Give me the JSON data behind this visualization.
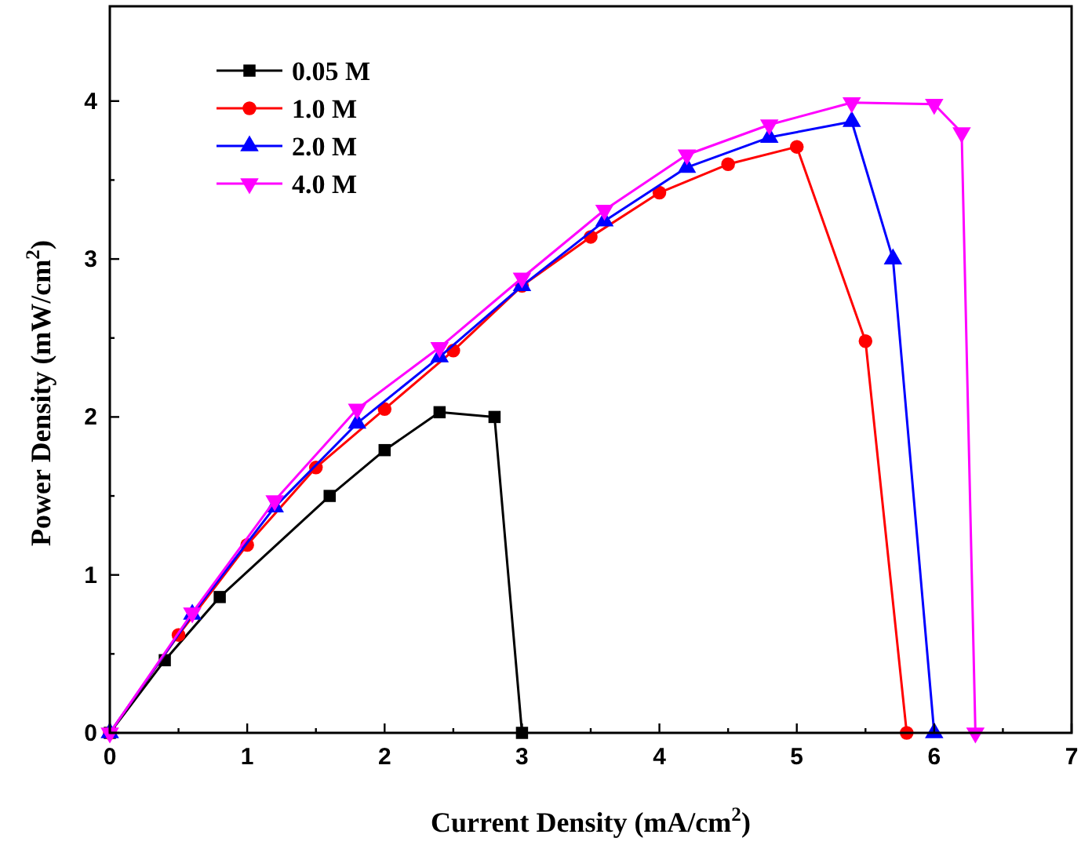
{
  "chart_data": {
    "type": "line",
    "xlabel": "Current Density (mA/cm$^{2}$)",
    "ylabel": "Power Density (mW/cm$^{2}$)",
    "xlim": [
      0,
      7
    ],
    "ylim": [
      0,
      4.6
    ],
    "xticks": [
      0,
      {
        "value": 0.5,
        "label": null
      },
      1,
      {
        "value": 1.5,
        "label": null
      },
      2,
      {
        "value": 2.5,
        "label": null
      },
      3,
      {
        "value": 3.5,
        "label": null
      },
      4,
      {
        "value": 4.5,
        "label": null
      },
      5,
      {
        "value": 5.5,
        "label": null
      },
      6,
      {
        "value": 6.5,
        "label": null
      },
      7
    ],
    "yticks": [
      0,
      {
        "value": 0.5,
        "label": null
      },
      1,
      {
        "value": 1.5,
        "label": null
      },
      2,
      {
        "value": 2.5,
        "label": null
      },
      3,
      {
        "value": 3.5,
        "label": null
      },
      4
    ],
    "legend": "top left",
    "grid": false,
    "line_style": "solid",
    "series": [
      {
        "name": "0.05 M",
        "color": "#000000",
        "marker": "square",
        "x": [
          0,
          0.4,
          0.8,
          1.6,
          2.0,
          2.4,
          2.8,
          3.0
        ],
        "values": [
          0,
          0.46,
          0.86,
          1.5,
          1.79,
          2.03,
          2.0,
          0
        ]
      },
      {
        "name": "1.0 M",
        "color": "#ff0000",
        "marker": "circle",
        "x": [
          0,
          0.5,
          1.0,
          1.5,
          2.0,
          2.5,
          3.0,
          3.5,
          4.0,
          4.5,
          5.0,
          5.5,
          5.8
        ],
        "values": [
          0,
          0.62,
          1.19,
          1.68,
          2.05,
          2.42,
          2.83,
          3.14,
          3.42,
          3.6,
          3.71,
          2.48,
          0
        ]
      },
      {
        "name": "2.0 M",
        "color": "#0000ff",
        "marker": "triangle",
        "x": [
          0,
          0.6,
          1.2,
          1.8,
          2.4,
          3.0,
          3.6,
          4.2,
          4.8,
          5.4,
          5.7,
          6.0
        ],
        "values": [
          0,
          0.75,
          1.43,
          1.96,
          2.38,
          2.83,
          3.24,
          3.58,
          3.77,
          3.87,
          3.0,
          0
        ]
      },
      {
        "name": "4.0 M",
        "color": "#ff00ff",
        "marker": "triangle-down",
        "x": [
          0,
          0.6,
          1.2,
          1.8,
          2.4,
          3.0,
          3.6,
          4.2,
          4.8,
          5.4,
          6.0,
          6.2,
          6.3
        ],
        "values": [
          0,
          0.76,
          1.47,
          2.05,
          2.44,
          2.88,
          3.31,
          3.66,
          3.85,
          3.99,
          3.98,
          3.8,
          0
        ]
      }
    ]
  }
}
